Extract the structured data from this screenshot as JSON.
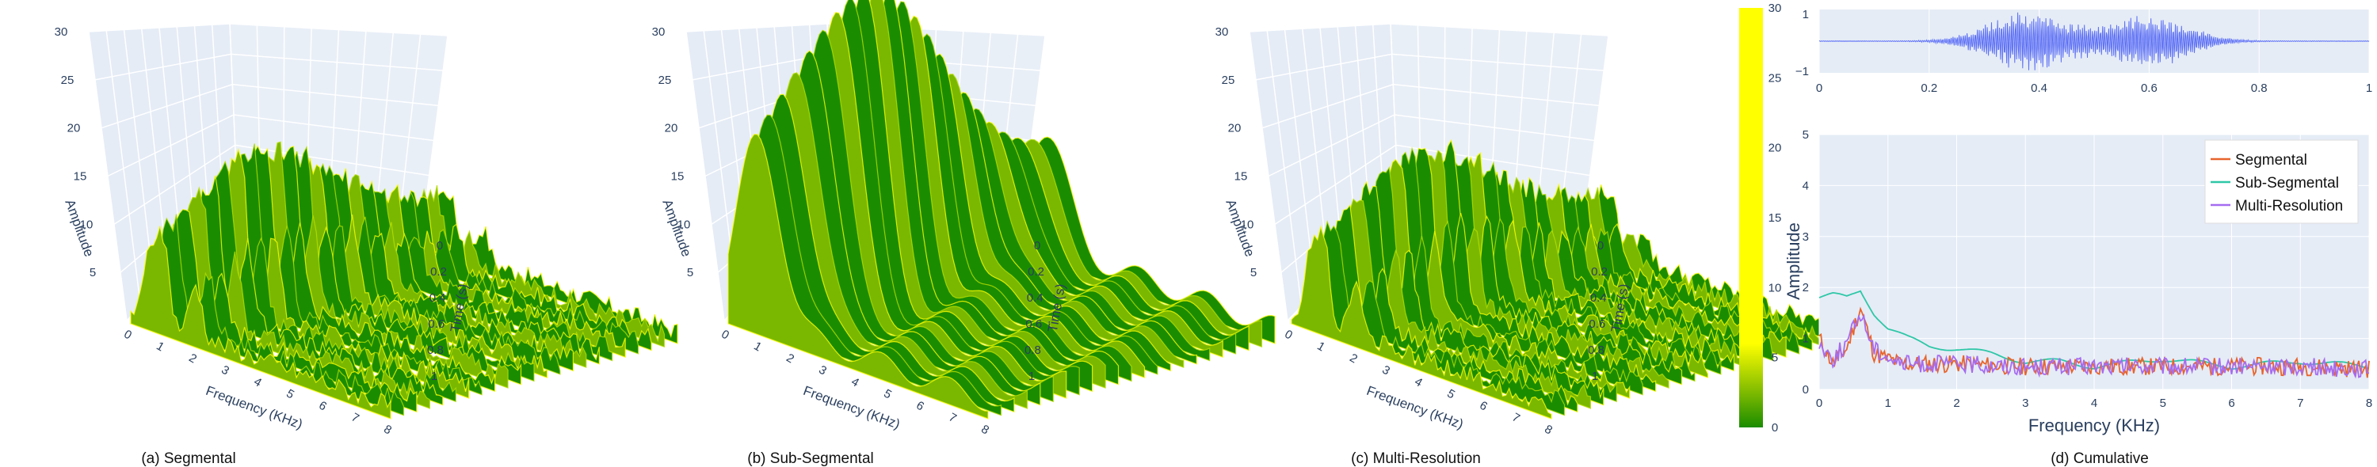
{
  "colors": {
    "low": "#1a8c00",
    "mid": "#7ab800",
    "high": "#ffff00",
    "segmental": "#e8642c",
    "subsegmental": "#2ec7a7",
    "multiresolution": "#a66bf0",
    "waveform": "#5b6ef5",
    "bg": "#e5ecf6"
  },
  "chart_data": [
    {
      "type": "surface3d",
      "caption": "(a) Segmental",
      "xlabel": "Frequency (KHz)",
      "ylabel": "Time (s)",
      "zlabel": "Amplitude",
      "x_ticks": [
        "0",
        "1",
        "2",
        "3",
        "4",
        "5",
        "6",
        "7",
        "8"
      ],
      "y_ticks": [
        "0",
        "0.2",
        "0.4",
        "0.6",
        "0.8",
        "1"
      ],
      "z_ticks": [
        "5",
        "10",
        "15",
        "20",
        "25",
        "30"
      ],
      "zlim": [
        0,
        30
      ],
      "peak_frequency_khz": [
        0.6,
        1.0,
        2.0
      ],
      "peak_amplitude": [
        14,
        16,
        10
      ]
    },
    {
      "type": "surface3d",
      "caption": "(b) Sub-Segmental",
      "xlabel": "Frequency (KHz)",
      "ylabel": "Time (s)",
      "zlabel": "Amplitude",
      "x_ticks": [
        "0",
        "1",
        "2",
        "3",
        "4",
        "5",
        "6",
        "7",
        "8"
      ],
      "y_ticks": [
        "0",
        "0.2",
        "0.4",
        "0.6",
        "0.8",
        "1"
      ],
      "z_ticks": [
        "5",
        "10",
        "15",
        "20",
        "25",
        "30"
      ],
      "zlim": [
        0,
        30
      ],
      "peak_frequency_khz": [
        0.5,
        1.0,
        1.5
      ],
      "peak_amplitude": [
        16,
        20,
        12
      ]
    },
    {
      "type": "surface3d",
      "caption": "(c) Multi-Resolution",
      "xlabel": "Frequency (KHz)",
      "ylabel": "Time (s)",
      "zlabel": "Amplitude",
      "x_ticks": [
        "0",
        "1",
        "2",
        "3",
        "4",
        "5",
        "6",
        "7",
        "8"
      ],
      "y_ticks": [
        "0",
        "0.2",
        "0.4",
        "0.6",
        "0.8",
        "1"
      ],
      "z_ticks": [
        "5",
        "10",
        "15",
        "20",
        "25",
        "30"
      ],
      "zlim": [
        0,
        30
      ],
      "peak_frequency_khz": [
        0.6,
        1.0,
        2.0
      ],
      "peak_amplitude": [
        14,
        16,
        10
      ]
    },
    {
      "type": "colorbar",
      "ticks": [
        "0",
        "5",
        "10",
        "15",
        "20",
        "25",
        "30"
      ],
      "range": [
        0,
        30
      ]
    },
    {
      "type": "line",
      "panel": "waveform",
      "x_ticks": [
        "0",
        "0.2",
        "0.4",
        "0.6",
        "0.8",
        "1"
      ],
      "y_ticks": [
        "1",
        "−1"
      ],
      "xlim": [
        0,
        1
      ],
      "ylim": [
        -1,
        1
      ],
      "bursts": [
        {
          "center": 0.38,
          "width": 0.07,
          "amplitude": 0.95
        },
        {
          "center": 0.6,
          "width": 0.07,
          "amplitude": 0.85
        }
      ]
    },
    {
      "type": "line",
      "caption": "(d) Cumulative",
      "xlabel": "Frequency (KHz)",
      "ylabel": "Amplitude",
      "x_ticks": [
        "0",
        "1",
        "2",
        "3",
        "4",
        "5",
        "6",
        "7",
        "8"
      ],
      "y_ticks": [
        "0",
        "1",
        "2",
        "3",
        "4",
        "5"
      ],
      "xlim": [
        0,
        8
      ],
      "ylim": [
        0,
        5
      ],
      "series": [
        {
          "name": "Segmental",
          "points": [
            [
              0,
              1.0
            ],
            [
              0.2,
              0.5
            ],
            [
              0.4,
              0.8
            ],
            [
              0.6,
              1.6
            ],
            [
              0.8,
              0.7
            ],
            [
              1.2,
              0.5
            ],
            [
              2,
              0.5
            ],
            [
              3,
              0.45
            ],
            [
              4,
              0.45
            ],
            [
              5,
              0.45
            ],
            [
              6,
              0.45
            ],
            [
              7,
              0.45
            ],
            [
              8,
              0.4
            ]
          ]
        },
        {
          "name": "Sub-Segmental",
          "points": [
            [
              0,
              1.8
            ],
            [
              0.2,
              1.85
            ],
            [
              0.4,
              1.8
            ],
            [
              0.6,
              1.95
            ],
            [
              0.8,
              1.5
            ],
            [
              1.0,
              1.2
            ],
            [
              1.3,
              1.0
            ],
            [
              1.6,
              0.85
            ],
            [
              2,
              0.8
            ],
            [
              2.5,
              0.7
            ],
            [
              3,
              0.55
            ],
            [
              3.5,
              0.55
            ],
            [
              4,
              0.45
            ],
            [
              5,
              0.6
            ],
            [
              6,
              0.45
            ],
            [
              7,
              0.55
            ],
            [
              8,
              0.45
            ]
          ]
        },
        {
          "name": "Multi-Resolution",
          "points": [
            [
              0,
              0.9
            ],
            [
              0.2,
              0.6
            ],
            [
              0.4,
              0.9
            ],
            [
              0.6,
              1.5
            ],
            [
              0.8,
              0.8
            ],
            [
              1.2,
              0.5
            ],
            [
              2,
              0.5
            ],
            [
              3,
              0.45
            ],
            [
              4,
              0.45
            ],
            [
              5,
              0.45
            ],
            [
              6,
              0.45
            ],
            [
              7,
              0.45
            ],
            [
              8,
              0.4
            ]
          ]
        }
      ]
    }
  ]
}
